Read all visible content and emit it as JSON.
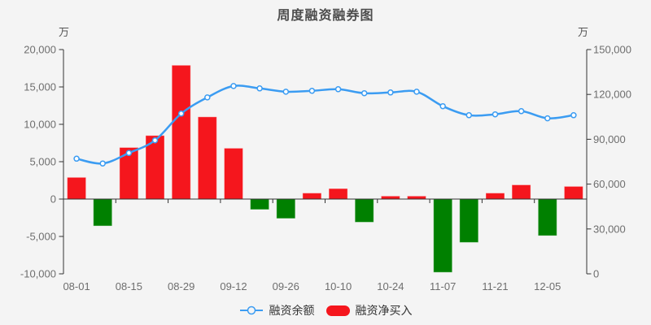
{
  "title": "周度融资融券图",
  "colors": {
    "background": "#f4f4f4",
    "bar_positive": "#f5161d",
    "bar_negative": "#008000",
    "line": "#3b9cf2",
    "axis_line": "#333333",
    "tick_label": "#6e6e6e",
    "title_text": "#4d4d4d",
    "legend_text": "#333333"
  },
  "axes": {
    "left": {
      "unit": "万",
      "tick_labels": [
        "20,000",
        "15,000",
        "10,000",
        "5,000",
        "0",
        "-5,000",
        "-10,000"
      ]
    },
    "right": {
      "unit": "万",
      "tick_labels": [
        "150,000",
        "120,000",
        "90,000",
        "60,000",
        "30,000",
        "0"
      ]
    },
    "x": {
      "tick_labels": [
        "08-01",
        "08-15",
        "08-29",
        "09-12",
        "09-26",
        "10-10",
        "10-24",
        "11-07",
        "11-21",
        "12-05"
      ]
    }
  },
  "legend": {
    "items": [
      {
        "label": "融资余额",
        "symbol": "line-circle-marker",
        "color": "#3b9cf2"
      },
      {
        "label": "融资净买入",
        "symbol": "rounded-bar",
        "color": "#f5161d"
      }
    ]
  },
  "chart_data": {
    "type": "combo line+bar",
    "title": "周度融资融券图",
    "x_labels_visible": [
      "08-01",
      "08-15",
      "08-29",
      "09-12",
      "09-26",
      "10-10",
      "10-24",
      "11-07",
      "11-21",
      "12-05"
    ],
    "points_per_label": 2,
    "num_points": 20,
    "left_ylim": [
      -10000,
      20000
    ],
    "right_ylim": [
      0,
      150000
    ],
    "grid": false,
    "legend_position": "bottom-center",
    "series": [
      {
        "name": "融资余额",
        "type": "line",
        "axis": "right",
        "smooth": true,
        "marker": "hollow-circle",
        "color": "#3b9cf2",
        "values": [
          77000,
          73800,
          80800,
          89300,
          107200,
          118000,
          125600,
          124000,
          121800,
          122400,
          123500,
          120800,
          121300,
          121800,
          112100,
          106100,
          106700,
          108800,
          104000,
          106100
        ]
      },
      {
        "name": "融资净买入",
        "type": "bar",
        "axis": "left",
        "color_positive": "#f5161d",
        "color_negative": "#008000",
        "values": [
          2900,
          -3600,
          6900,
          8500,
          17900,
          11000,
          6800,
          -1400,
          -2600,
          800,
          1400,
          -3100,
          400,
          400,
          -9800,
          -5800,
          800,
          1900,
          -4900,
          1700
        ]
      }
    ]
  }
}
